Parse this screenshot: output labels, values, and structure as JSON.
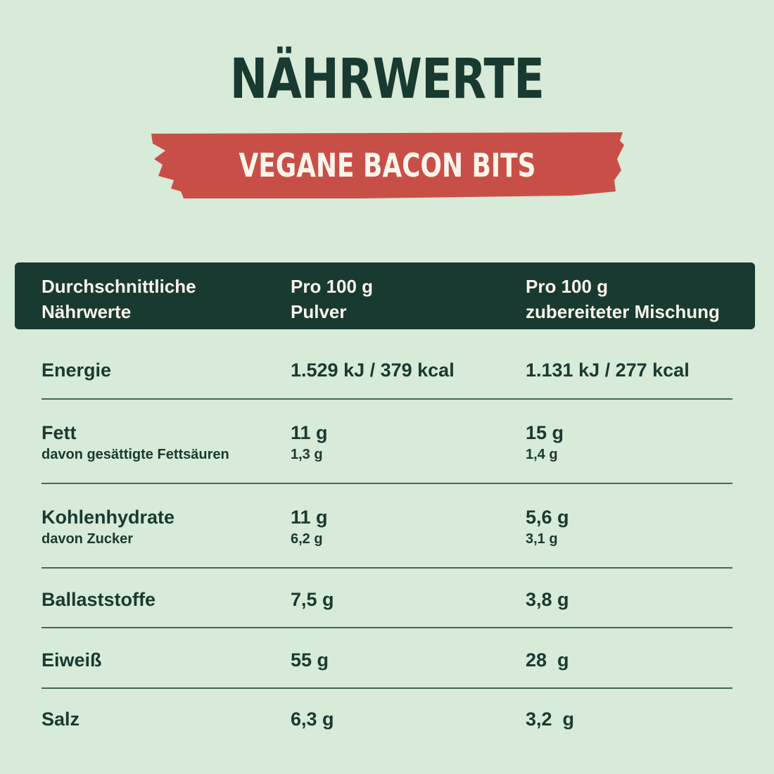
{
  "title": "NÄHRWERTE",
  "subtitle": "VEGANE BACON BITS",
  "colors": {
    "background": "#d8ead8",
    "dark_green": "#193a30",
    "banner_red": "#c84f47",
    "banner_text": "#fbf5ec"
  },
  "header": {
    "col1": [
      "Durchschnittliche",
      "Nährwerte"
    ],
    "col2": [
      "Pro 100 g",
      "Pulver"
    ],
    "col3": [
      "Pro 100 g",
      "zubereiteter Mischung"
    ]
  },
  "rows": [
    {
      "label": "Energie",
      "powder": "1.529 kJ / 379 kcal",
      "prepared": "1.131 kJ / 277 kcal"
    },
    {
      "label": "Fett",
      "powder": "11 g",
      "prepared": "15 g",
      "sub_label": "davon gesättigte Fettsäuren",
      "sub_powder": "1,3 g",
      "sub_prepared": "1,4 g"
    },
    {
      "label": "Kohlenhydrate",
      "powder": "11 g",
      "prepared": "5,6 g",
      "sub_label": "davon Zucker",
      "sub_powder": "6,2 g",
      "sub_prepared": "3,1 g"
    },
    {
      "label": "Ballaststoffe",
      "powder": "7,5 g",
      "prepared": "3,8 g"
    },
    {
      "label": "Eiweiß",
      "powder": "55 g",
      "prepared": "28  g"
    },
    {
      "label": "Salz",
      "powder": "6,3 g",
      "prepared": "3,2  g"
    }
  ]
}
